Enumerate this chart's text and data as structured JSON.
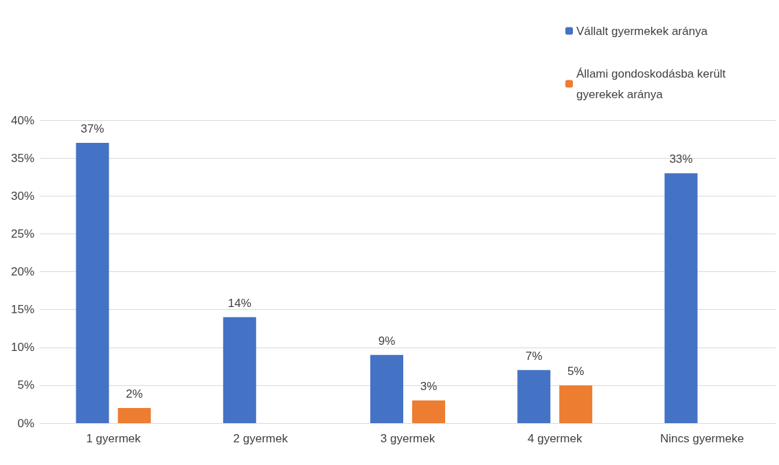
{
  "chart_data": {
    "type": "bar",
    "categories": [
      "1 gyermek",
      "2 gyermek",
      "3 gyermek",
      "4 gyermek",
      "Nincs gyermeke"
    ],
    "series": [
      {
        "name": "Vállalt gyermekek aránya",
        "color": "#4472c4",
        "values": [
          37,
          14,
          9,
          7,
          33
        ],
        "value_labels": [
          "37%",
          "14%",
          "9%",
          "7%",
          "33%"
        ]
      },
      {
        "name": "Állami gondoskodásba került gyerekek aránya",
        "color": "#ed7d31",
        "values": [
          2,
          null,
          3,
          5,
          null
        ],
        "value_labels": [
          "2%",
          null,
          "3%",
          "5%",
          null
        ]
      }
    ],
    "ylim": [
      0,
      40
    ],
    "yticks": [
      {
        "value": 0,
        "label": "0%"
      },
      {
        "value": 5,
        "label": "5%"
      },
      {
        "value": 10,
        "label": "10%"
      },
      {
        "value": 15,
        "label": "15%"
      },
      {
        "value": 20,
        "label": "20%"
      },
      {
        "value": 25,
        "label": "25%"
      },
      {
        "value": 30,
        "label": "30%"
      },
      {
        "value": 35,
        "label": "35%"
      },
      {
        "value": 40,
        "label": "40%"
      }
    ],
    "grid": "y",
    "legend": "top right"
  }
}
